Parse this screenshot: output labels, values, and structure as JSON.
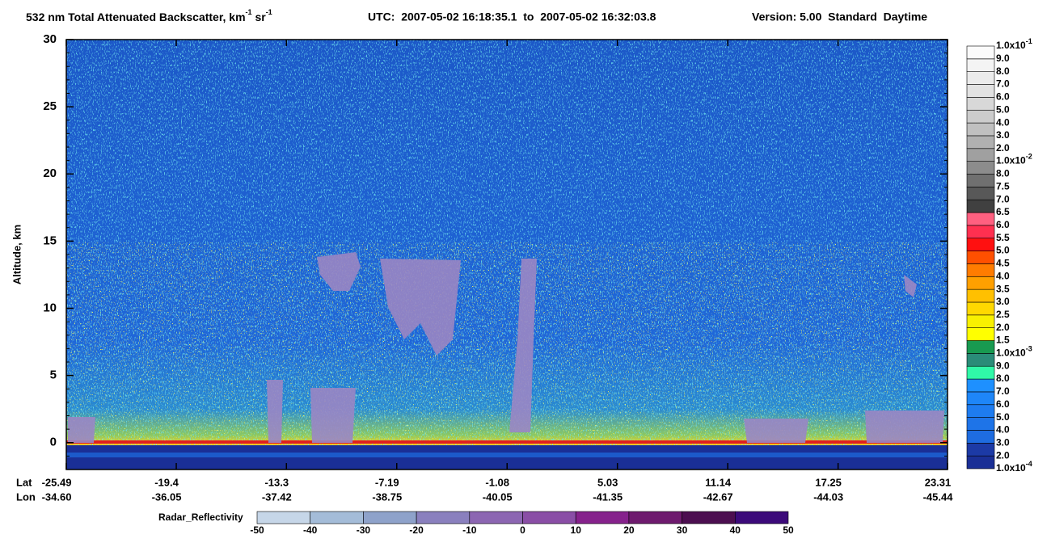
{
  "chart_data": {
    "type": "curtain",
    "title": {
      "main": "532 nm Total Attenuated Backscatter, km",
      "sup1": "-1",
      "mid": " sr",
      "sup2": "-1",
      "utc": "UTC:  2007-05-02 16:18:35.1  to  2007-05-02 16:32:03.8",
      "version": "Version: 5.00  Standard  Daytime"
    },
    "y_label": "Altitude, km",
    "ylim": [
      -2,
      30
    ],
    "yticks": [
      0,
      5,
      10,
      15,
      20,
      25,
      30
    ],
    "x_label": "Lat",
    "x2_label": "Lon",
    "xlim": [
      -25.49,
      23.31
    ],
    "xticks": [
      -25.49,
      -19.4,
      -13.3,
      -7.19,
      -1.08,
      5.03,
      11.14,
      17.25,
      23.31
    ],
    "lon_labels": [
      "-34.60",
      "-36.05",
      "-37.42",
      "-38.75",
      "-40.05",
      "-41.35",
      "-42.67",
      "-44.03",
      "-45.44"
    ],
    "colorbar": {
      "labels": [
        {
          "base": "1.0x10",
          "exp": "-4"
        },
        "2.0",
        "3.0",
        "4.0",
        "5.0",
        "6.0",
        "7.0",
        "8.0",
        "9.0",
        {
          "base": "1.0x10",
          "exp": "-3"
        },
        "1.5",
        "2.0",
        "2.5",
        "3.0",
        "3.5",
        "4.0",
        "4.5",
        "5.0",
        "5.5",
        "6.0",
        "6.5",
        "7.0",
        "7.5",
        "8.0",
        {
          "base": "1.0x10",
          "exp": "-2"
        },
        "2.0",
        "3.0",
        "4.0",
        "5.0",
        "6.0",
        "7.0",
        "8.0",
        "9.0",
        {
          "base": "1.0x10",
          "exp": "-1"
        }
      ],
      "colors": [
        "#1a2f96",
        "#1c3aa6",
        "#1e6ce0",
        "#1e74e8",
        "#1e7cf0",
        "#1e86f8",
        "#1e90ff",
        "#30f8a8",
        "#2a8c78",
        "#189a50",
        "#ffff00",
        "#f8f000",
        "#ffd800",
        "#ffc000",
        "#ffa000",
        "#ff7c00",
        "#ff5000",
        "#ff1010",
        "#ff3050",
        "#ff6080",
        "#404040",
        "#585858",
        "#707070",
        "#8c8c8c",
        "#a0a0a0",
        "#b0b0b0",
        "#c0c0c0",
        "#cccccc",
        "#d8d8d8",
        "#e2e2e2",
        "#ebebeb",
        "#f4f4f4",
        "#fbfbfb"
      ]
    },
    "radar_colorbar": {
      "label": "Radar_Reflectivity",
      "ticks": [
        -50,
        -40,
        -30,
        -20,
        -10,
        0,
        10,
        20,
        30,
        40,
        50
      ],
      "colors": [
        "#c6d6e8",
        "#a4bcd8",
        "#8ea2ca",
        "#8a80be",
        "#8c66b2",
        "#8a4ea6",
        "#86228c",
        "#6e1a6e",
        "#4c0e50",
        "#3c0a7a"
      ]
    }
  }
}
